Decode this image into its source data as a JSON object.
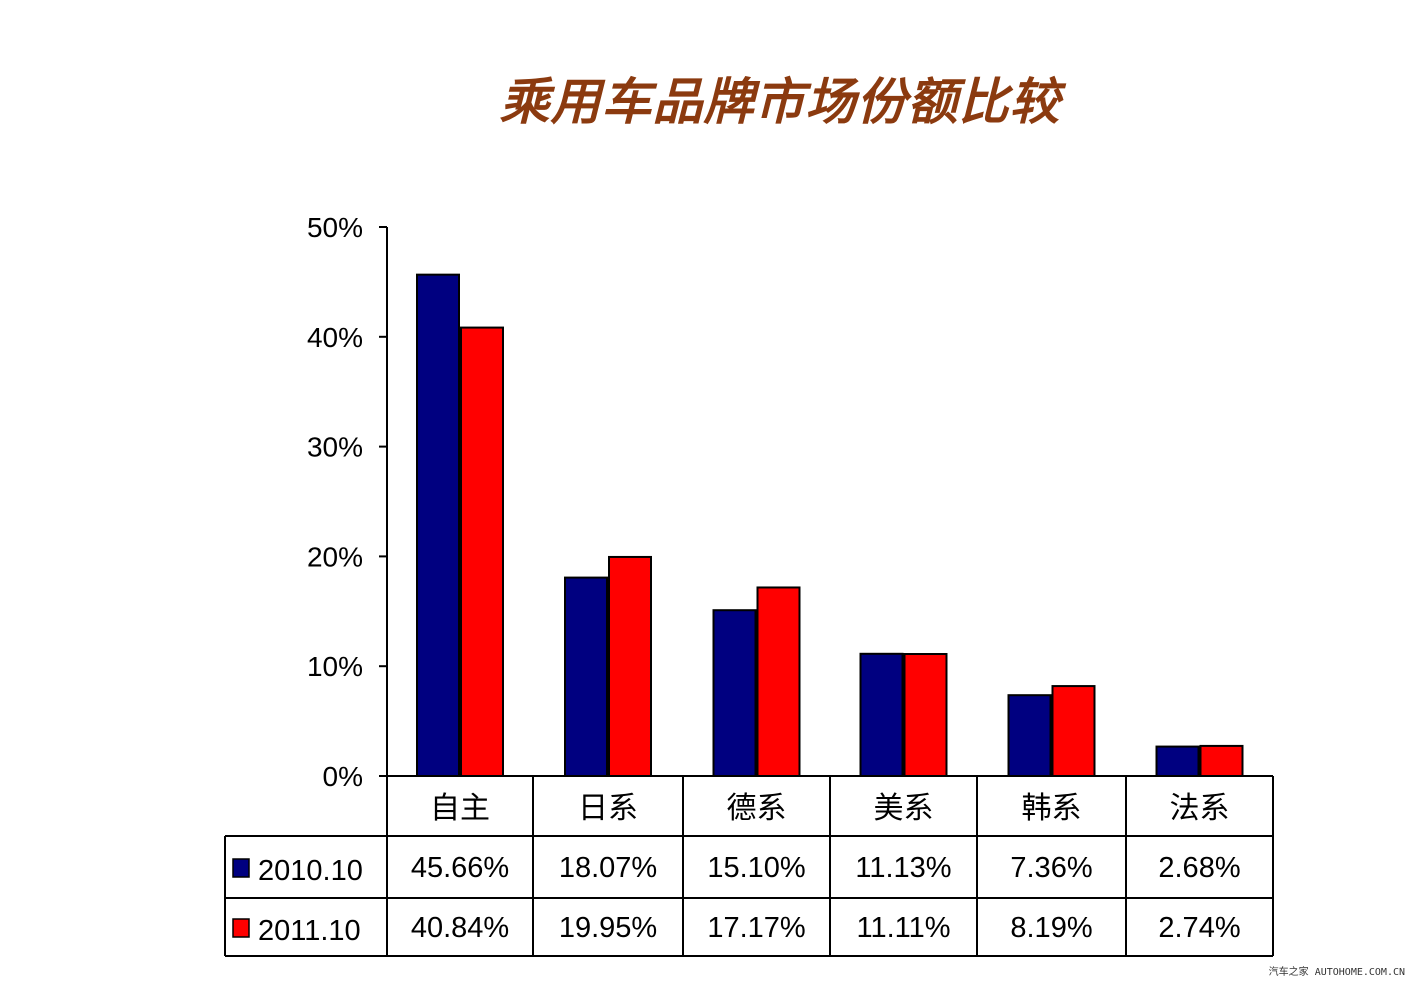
{
  "chart_data": {
    "type": "bar",
    "title": "乘用车品牌市场份额比较",
    "categories": [
      "自主",
      "日系",
      "德系",
      "美系",
      "韩系",
      "法系"
    ],
    "series": [
      {
        "name": "2010.10",
        "color": "#000080",
        "values": [
          45.66,
          18.07,
          15.1,
          11.13,
          7.36,
          2.68
        ],
        "labels": [
          "45.66%",
          "18.07%",
          "15.10%",
          "11.13%",
          "7.36%",
          "2.68%"
        ]
      },
      {
        "name": "2011.10",
        "color": "#ff0000",
        "values": [
          40.84,
          19.95,
          17.17,
          11.11,
          8.19,
          2.74
        ],
        "labels": [
          "40.84%",
          "19.95%",
          "17.17%",
          "11.11%",
          "8.19%",
          "2.74%"
        ]
      }
    ],
    "ylim": [
      0,
      50
    ],
    "yticks": [
      0,
      10,
      20,
      30,
      40,
      50
    ],
    "ytick_labels": [
      "0%",
      "10%",
      "20%",
      "30%",
      "40%",
      "50%"
    ],
    "xlabel": "",
    "ylabel": "",
    "data_table": true
  },
  "watermark": "汽车之家 AUTOHOME.COM.CN"
}
